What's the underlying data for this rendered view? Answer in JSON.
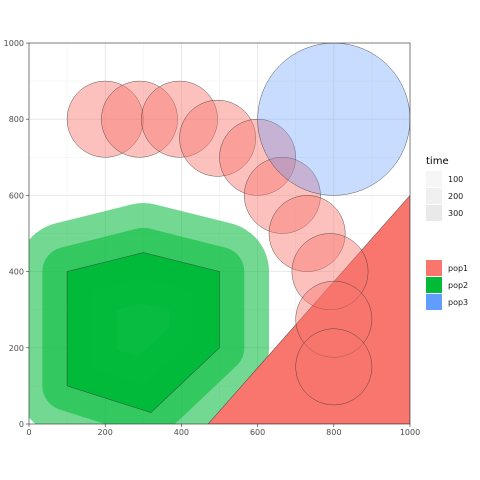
{
  "chart_data": {
    "type": "area",
    "xlim": [
      0,
      1000
    ],
    "ylim": [
      0,
      1000
    ],
    "x_ticks": [
      0,
      200,
      400,
      600,
      800,
      1000
    ],
    "y_ticks": [
      0,
      200,
      400,
      600,
      800,
      1000
    ],
    "grid": true,
    "legend_position": "right",
    "legend_time": {
      "title": "time",
      "entries": [
        "100",
        "200",
        "300"
      ]
    },
    "legend_population": {
      "title": "",
      "entries": [
        {
          "name": "pop1",
          "color": "#F8766D"
        },
        {
          "name": "pop2",
          "color": "#00BA38"
        },
        {
          "name": "pop3",
          "color": "#619CFF"
        }
      ]
    },
    "series": [
      {
        "name": "pop2",
        "color": "#00BA38",
        "shape": "polygon",
        "layers": [
          {
            "time": "100",
            "alpha": 0.85,
            "buffer": 0,
            "points": [
              [
                100,
                400
              ],
              [
                300,
                450
              ],
              [
                500,
                400
              ],
              [
                500,
                200
              ],
              [
                320,
                30
              ],
              [
                100,
                100
              ]
            ]
          },
          {
            "time": "200",
            "alpha": 0.55,
            "buffer": 65,
            "points": [
              [
                100,
                400
              ],
              [
                300,
                450
              ],
              [
                500,
                400
              ],
              [
                500,
                200
              ],
              [
                320,
                30
              ],
              [
                100,
                100
              ]
            ]
          },
          {
            "time": "300",
            "alpha": 0.55,
            "buffer": 130,
            "points": [
              [
                100,
                400
              ],
              [
                300,
                450
              ],
              [
                500,
                400
              ],
              [
                500,
                200
              ],
              [
                320,
                30
              ],
              [
                100,
                100
              ]
            ]
          }
        ]
      },
      {
        "name": "pop1",
        "color": "#F8766D",
        "shape": "polygon",
        "layers": [
          {
            "time": "100",
            "alpha": 1.0,
            "buffer": 0,
            "points": [
              [
                470,
                0
              ],
              [
                1000,
                0
              ],
              [
                1000,
                600
              ]
            ]
          }
        ]
      },
      {
        "name": "pop1",
        "color": "#F8766D",
        "shape": "circles",
        "alpha": 0.45,
        "radius": 100,
        "centers": [
          [
            200,
            800
          ],
          [
            290,
            800
          ],
          [
            395,
            800
          ],
          [
            495,
            750
          ],
          [
            600,
            700
          ],
          [
            665,
            600
          ],
          [
            730,
            500
          ],
          [
            790,
            400
          ],
          [
            800,
            275
          ],
          [
            800,
            150
          ]
        ]
      },
      {
        "name": "pop3",
        "color": "#619CFF",
        "shape": "circles",
        "alpha": 0.35,
        "radius": 200,
        "centers": [
          [
            800,
            800
          ]
        ]
      }
    ]
  }
}
